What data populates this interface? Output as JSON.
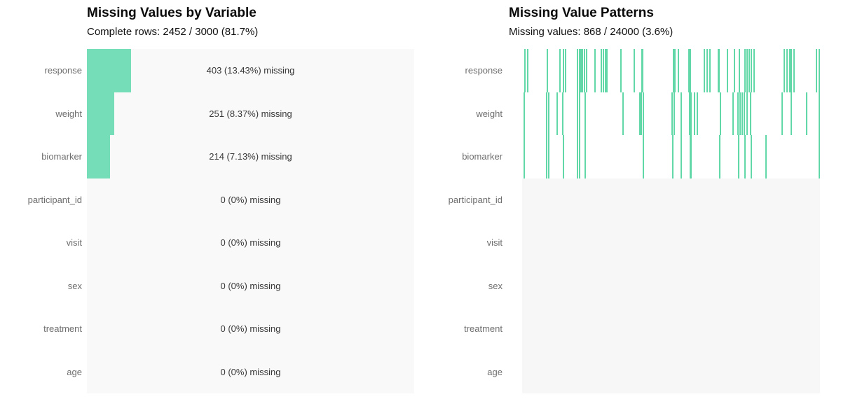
{
  "colors": {
    "bar_fill": "#75deb9",
    "matrix_line": "#62d8a8",
    "left_plot_bg": "#f9f9f9",
    "right_plot_bg": "#f7f7f7",
    "right_missing_band_bg": "#ffffff",
    "row_label_color": "#6e6e6e",
    "annotation_color": "#383838",
    "title_color": "#0a0a0a"
  },
  "chart_data": [
    {
      "type": "bar",
      "orientation": "horizontal",
      "title": "Missing Values by Variable",
      "subtitle": "Complete rows: 2452 / 3000 (81.7%)",
      "categories": [
        "response",
        "weight",
        "biomarker",
        "participant_id",
        "visit",
        "sex",
        "treatment",
        "age"
      ],
      "values_count_missing": [
        403,
        251,
        214,
        0,
        0,
        0,
        0,
        0
      ],
      "values_pct_missing": [
        13.43,
        8.37,
        7.13,
        0,
        0,
        0,
        0,
        0
      ],
      "bar_labels": [
        "403 (13.43%) missing",
        "251 (8.37%) missing",
        "214 (7.13%) missing",
        "0 (0%) missing",
        "0 (0%) missing",
        "0 (0%) missing",
        "0 (0%) missing",
        "0 (0%) missing"
      ],
      "xlim": [
        0,
        100
      ],
      "grid": false,
      "legend": false
    },
    {
      "type": "heatmap",
      "title": "Missing Value Patterns",
      "subtitle": "Missing values: 868 / 24000 (3.6%)",
      "rows": [
        "response",
        "weight",
        "biomarker",
        "participant_id",
        "visit",
        "sex",
        "treatment",
        "age"
      ],
      "total_cells": 24000,
      "total_missing": 868,
      "rows_with_missing": 3,
      "legend": false,
      "missing_line_positions_frac_width": {
        "response": [
          [
            0.006,
            2
          ],
          [
            0.016,
            2
          ],
          [
            0.082,
            2
          ],
          [
            0.125,
            2
          ],
          [
            0.137,
            2
          ],
          [
            0.143,
            2
          ],
          [
            0.184,
            2
          ],
          [
            0.19,
            2
          ],
          [
            0.196,
            2
          ],
          [
            0.201,
            2
          ],
          [
            0.207,
            2
          ],
          [
            0.214,
            2
          ],
          [
            0.242,
            2
          ],
          [
            0.264,
            2
          ],
          [
            0.271,
            2
          ],
          [
            0.277,
            2
          ],
          [
            0.283,
            2
          ],
          [
            0.329,
            2
          ],
          [
            0.374,
            2
          ],
          [
            0.4,
            3
          ],
          [
            0.506,
            2
          ],
          [
            0.511,
            2
          ],
          [
            0.522,
            2
          ],
          [
            0.558,
            4
          ],
          [
            0.609,
            2
          ],
          [
            0.619,
            2
          ],
          [
            0.628,
            2
          ],
          [
            0.657,
            3
          ],
          [
            0.687,
            2
          ],
          [
            0.71,
            2
          ],
          [
            0.727,
            2
          ],
          [
            0.746,
            2
          ],
          [
            0.753,
            2
          ],
          [
            0.76,
            2
          ],
          [
            0.767,
            2
          ],
          [
            0.776,
            2
          ],
          [
            0.877,
            2
          ],
          [
            0.887,
            2
          ],
          [
            0.897,
            4
          ],
          [
            0.91,
            2
          ],
          [
            0.986,
            2
          ],
          [
            0.995,
            2
          ]
        ],
        "weight": [
          [
            0.004,
            2
          ],
          [
            0.081,
            2
          ],
          [
            0.088,
            2
          ],
          [
            0.115,
            2
          ],
          [
            0.135,
            2
          ],
          [
            0.184,
            2
          ],
          [
            0.19,
            2
          ],
          [
            0.21,
            2
          ],
          [
            0.336,
            2
          ],
          [
            0.393,
            4
          ],
          [
            0.405,
            2
          ],
          [
            0.502,
            2
          ],
          [
            0.508,
            2
          ],
          [
            0.532,
            2
          ],
          [
            0.56,
            4
          ],
          [
            0.576,
            2
          ],
          [
            0.586,
            2
          ],
          [
            0.663,
            2
          ],
          [
            0.706,
            2
          ],
          [
            0.722,
            2
          ],
          [
            0.729,
            2
          ],
          [
            0.737,
            2
          ],
          [
            0.744,
            2
          ],
          [
            0.753,
            2
          ],
          [
            0.765,
            2
          ],
          [
            0.871,
            2
          ],
          [
            0.901,
            2
          ],
          [
            0.953,
            2
          ],
          [
            0.995,
            2
          ]
        ],
        "biomarker": [
          [
            0.004,
            2
          ],
          [
            0.081,
            2
          ],
          [
            0.088,
            2
          ],
          [
            0.137,
            2
          ],
          [
            0.184,
            2
          ],
          [
            0.19,
            2
          ],
          [
            0.21,
            2
          ],
          [
            0.405,
            2
          ],
          [
            0.504,
            2
          ],
          [
            0.532,
            2
          ],
          [
            0.562,
            3
          ],
          [
            0.661,
            2
          ],
          [
            0.725,
            2
          ],
          [
            0.746,
            2
          ],
          [
            0.767,
            2
          ],
          [
            0.817,
            2
          ],
          [
            0.995,
            2
          ]
        ],
        "participant_id": [],
        "visit": [],
        "sex": [],
        "treatment": [],
        "age": []
      }
    }
  ]
}
